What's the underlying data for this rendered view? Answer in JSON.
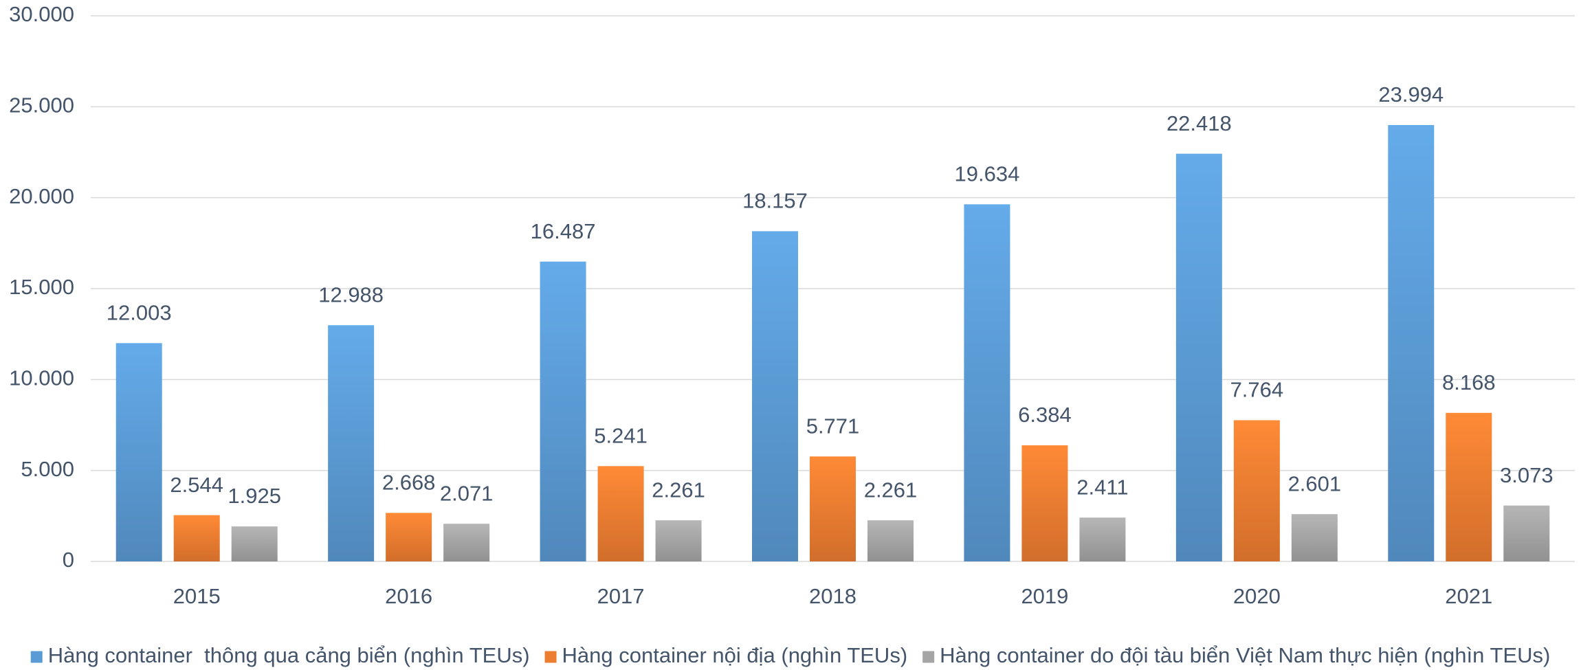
{
  "chart_data": {
    "type": "bar",
    "categories": [
      "2015",
      "2016",
      "2017",
      "2018",
      "2019",
      "2020",
      "2021"
    ],
    "series": [
      {
        "name": "Hàng container  thông qua cảng biển (nghìn TEUs)",
        "color": "#5b9bd5",
        "values": [
          12003,
          12988,
          16487,
          18157,
          19634,
          22418,
          23994
        ],
        "value_labels": [
          "12.003",
          "12.988",
          "16.487",
          "18.157",
          "19.634",
          "22.418",
          "23.994"
        ]
      },
      {
        "name": "Hàng container nội địa (nghìn TEUs)",
        "color": "#ed7d31",
        "values": [
          2544,
          2668,
          5241,
          5771,
          6384,
          7764,
          8168
        ],
        "value_labels": [
          "2.544",
          "2.668",
          "5.241",
          "5.771",
          "6.384",
          "7.764",
          "8.168"
        ]
      },
      {
        "name": "Hàng container do đội tàu biển Việt Nam thực hiện (nghìn TEUs)",
        "color": "#a5a5a5",
        "values": [
          1925,
          2071,
          2261,
          2261,
          2411,
          2601,
          3073
        ],
        "value_labels": [
          "1.925",
          "2.071",
          "2.261",
          "2.261",
          "2.411",
          "2.601",
          "3.073"
        ]
      }
    ],
    "ylim": [
      0,
      30000
    ],
    "yticks": [
      0,
      {
        "value": 5000,
        "label": "5.000"
      },
      {
        "value": 10000,
        "label": "10.000"
      },
      {
        "value": 15000,
        "label": "15.000"
      },
      {
        "value": 20000,
        "label": "20.000"
      },
      {
        "value": 25000,
        "label": "25.000"
      },
      {
        "value": 30000,
        "label": "30.000"
      }
    ],
    "grid": true,
    "legend": "bottom"
  }
}
